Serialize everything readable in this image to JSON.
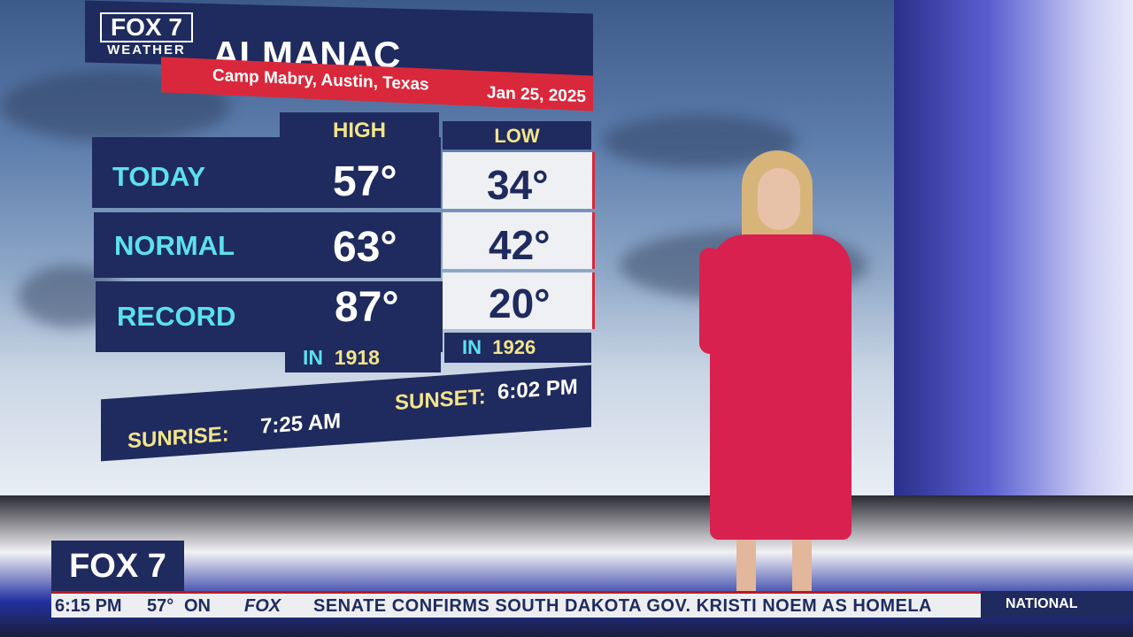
{
  "graphic": {
    "brand": "FOX 7",
    "brand_sub": "WEATHER",
    "title": "ALMANAC",
    "location": "Camp Mabry, Austin, Texas",
    "date": "Jan 25, 2025",
    "col_high": "HIGH",
    "col_low": "LOW",
    "rows": [
      {
        "label": "TODAY",
        "high": "57°",
        "low": "34°"
      },
      {
        "label": "NORMAL",
        "high": "63°",
        "low": "42°"
      },
      {
        "label": "RECORD",
        "high": "87°",
        "low": "20°"
      }
    ],
    "record_high_year_prefix": "IN",
    "record_high_year": "1918",
    "record_low_year_prefix": "IN",
    "record_low_year": "1926",
    "sunrise_label": "SUNRISE:",
    "sunrise": "7:25 AM",
    "sunset_label": "SUNSET:",
    "sunset": "6:02 PM"
  },
  "lower_third": {
    "station": "FOX 7",
    "time": "6:15 PM",
    "temp": "57°",
    "fragment": "ON",
    "network": "FOX",
    "headline": "SENATE CONFIRMS SOUTH DAKOTA GOV. KRISTI NOEM AS HOMELA",
    "category": "NATIONAL"
  },
  "colors": {
    "navy": "#1f2a5e",
    "red": "#d9283b",
    "cyan": "#5ce1ee",
    "yellow": "#f3e48a",
    "dress": "#d8214f"
  }
}
